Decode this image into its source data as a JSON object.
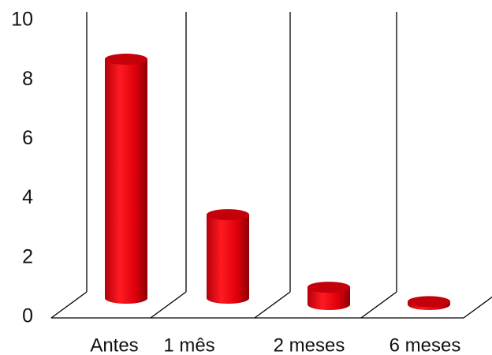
{
  "chart_data": {
    "type": "bar",
    "title": "",
    "xlabel": "",
    "ylabel": "",
    "categories": [
      "Antes",
      "1 mês",
      "2 meses",
      "6 meses"
    ],
    "values": [
      8.3,
      2.9,
      0.6,
      0.1
    ],
    "y_ticks": [
      "0",
      "2",
      "4",
      "6",
      "8",
      "10"
    ],
    "ylim": [
      0,
      10
    ],
    "grid": false,
    "legend": "none",
    "bar_style": "3d-cylinder",
    "colors": {
      "bar": "#e0000b",
      "bar_dark": "#9c0008",
      "bar_top": "#c4000a",
      "axis": "#000000"
    }
  }
}
